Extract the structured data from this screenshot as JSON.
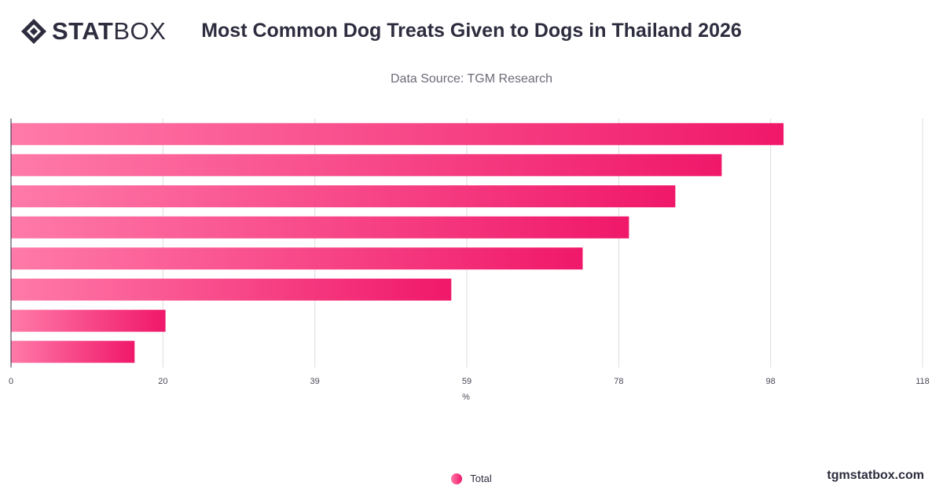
{
  "brand": {
    "logo_bold": "STAT",
    "logo_light": "BOX",
    "watermark": "tgmstatbox.com"
  },
  "header": {
    "title": "Most Common Dog Treats Given to Dogs in Thailand 2026",
    "subtitle": "Data Source: TGM Research"
  },
  "legend": {
    "label": "Total"
  },
  "colors": {
    "bar_start": "#ff7aa8",
    "bar_end": "#f0186a",
    "grid": "#dcdce0",
    "axis": "#2d2d3f"
  },
  "chart_data": {
    "type": "bar",
    "orientation": "horizontal",
    "title": "Most Common Dog Treats Given to Dogs in Thailand 2026",
    "xlabel": "%",
    "ylabel": "",
    "xlim": [
      0,
      118
    ],
    "x_ticks": [
      "0",
      "20",
      "39",
      "59",
      "78",
      "98",
      "118"
    ],
    "grid": true,
    "legend_position": "bottom",
    "categories": [
      "",
      "",
      "",
      "",
      "",
      "",
      "",
      ""
    ],
    "series": [
      {
        "name": "Total",
        "values": [
          100,
          92,
          86,
          80,
          74,
          57,
          20,
          16
        ]
      }
    ]
  }
}
